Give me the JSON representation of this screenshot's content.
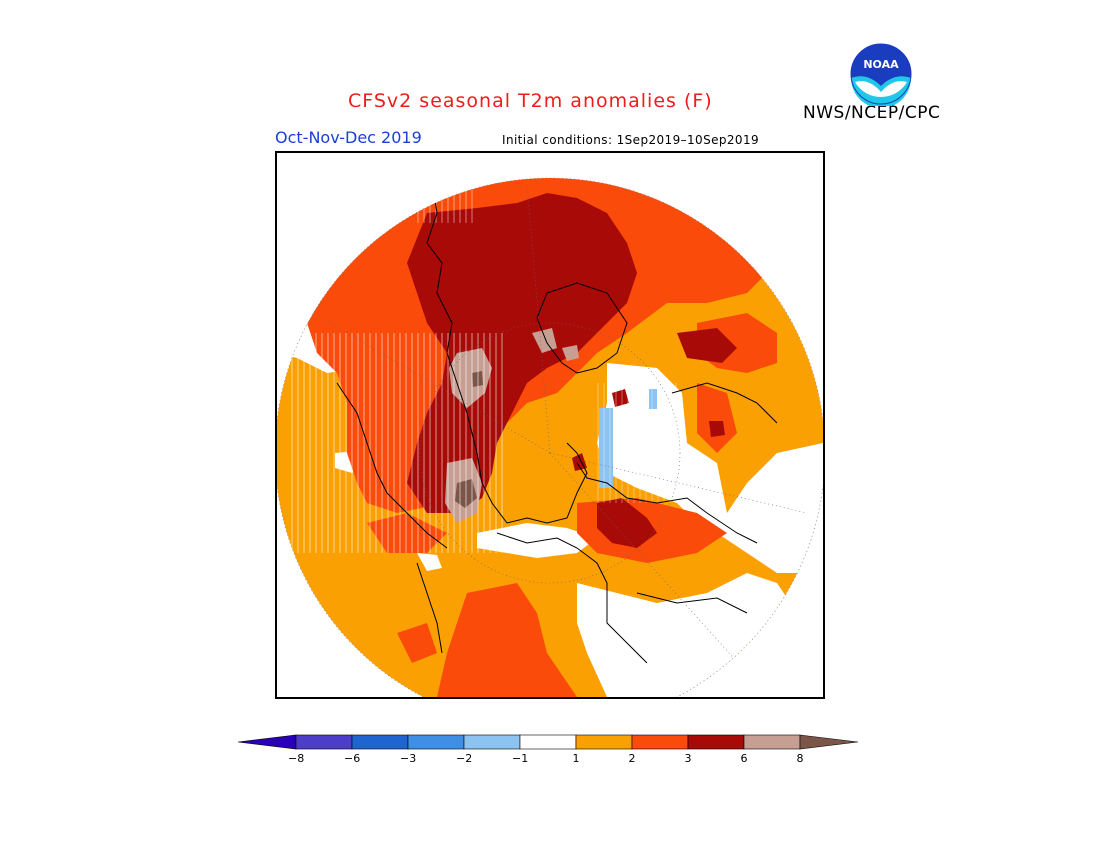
{
  "header": {
    "title": "CFSv2 seasonal T2m anomalies (F)",
    "org": "NWS/NCEP/CPC",
    "season": "Oct-Nov-Dec 2019",
    "initial_conditions": "Initial conditions: 1Sep2019–10Sep2019"
  },
  "logo": {
    "text": "NOAA",
    "name": "noaa-logo"
  },
  "legend": {
    "bins": [
      {
        "color": "#2a00b8"
      },
      {
        "color": "#4d3ec9"
      },
      {
        "color": "#1f64d1"
      },
      {
        "color": "#3f8fe6"
      },
      {
        "color": "#8cc3f1"
      },
      {
        "color": "#ffffff"
      },
      {
        "color": "#fba003"
      },
      {
        "color": "#fa4b0a"
      },
      {
        "color": "#a80a07"
      },
      {
        "color": "#c79f92"
      },
      {
        "color": "#7a5548"
      }
    ],
    "ticks": [
      "−8",
      "−6",
      "−3",
      "−2",
      "−1",
      "1",
      "2",
      "3",
      "6",
      "8"
    ]
  }
}
